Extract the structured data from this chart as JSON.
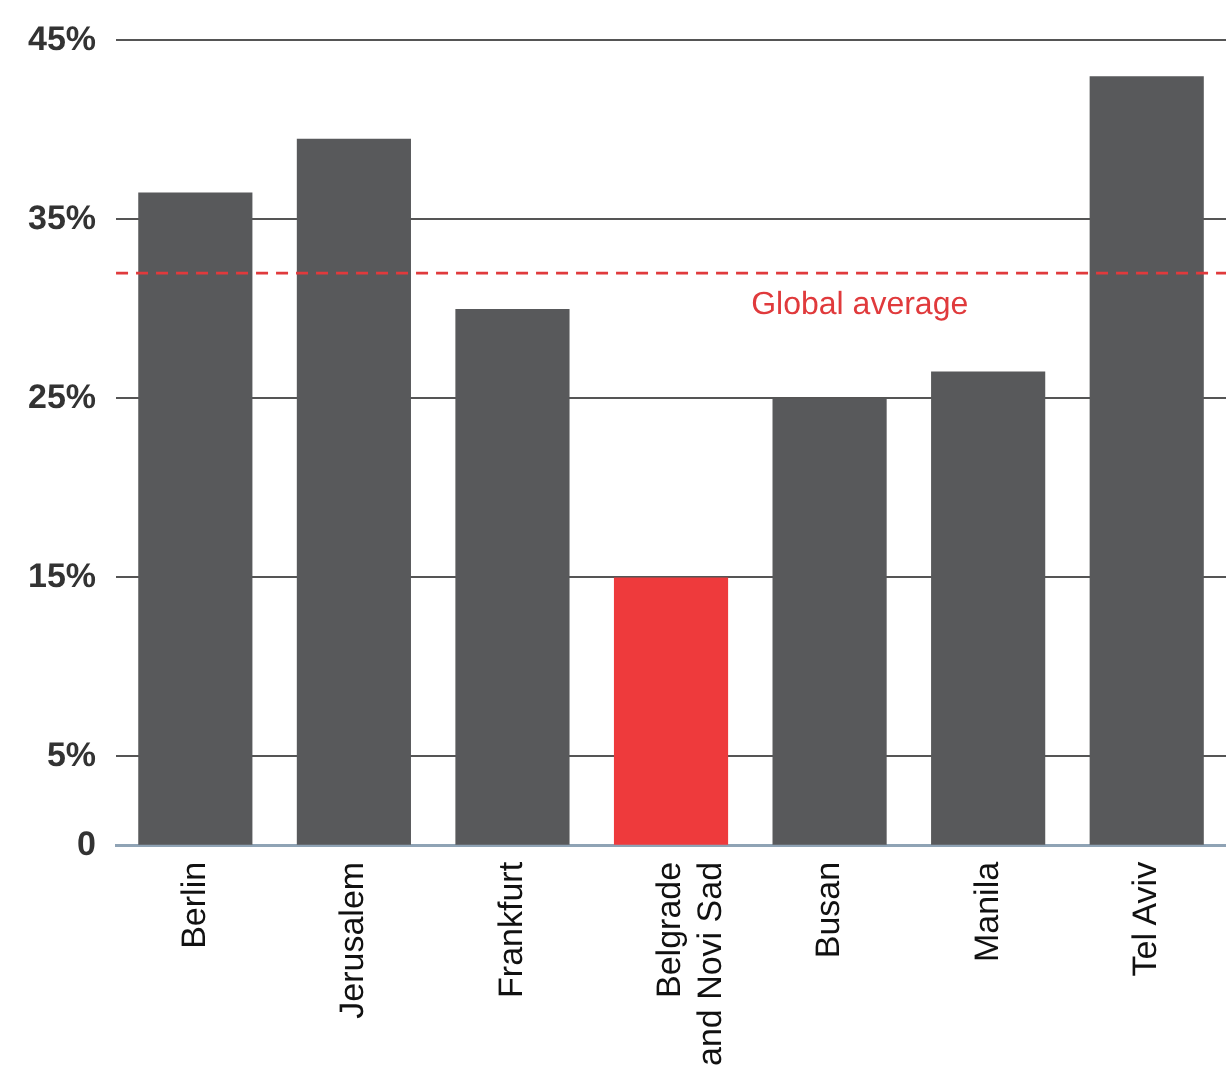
{
  "chart_data": {
    "type": "bar",
    "categories": [
      "Berlin",
      "Jerusalem",
      "Frankfurt",
      "Belgrade and Novi Sad",
      "Busan",
      "Manila",
      "Tel Aviv"
    ],
    "values": [
      36.5,
      39.5,
      30,
      15,
      25,
      26.5,
      43
    ],
    "colors": [
      "#58595b",
      "#58595b",
      "#58595b",
      "#ee3a3c",
      "#58595b",
      "#58595b",
      "#58595b"
    ],
    "ylim": [
      0,
      45
    ],
    "yticks": [
      {
        "value": 0,
        "label": "0"
      },
      {
        "value": 5,
        "label": "5%"
      },
      {
        "value": 15,
        "label": "15%"
      },
      {
        "value": 25,
        "label": "25%"
      },
      {
        "value": 35,
        "label": "35%"
      },
      {
        "value": 45,
        "label": "45%"
      }
    ],
    "grid": "y",
    "legend": false,
    "ref_lines": [
      {
        "axis": "y",
        "value": 32,
        "label": "Global average",
        "color": "#e03a3c",
        "line_style": "dashed"
      }
    ]
  }
}
